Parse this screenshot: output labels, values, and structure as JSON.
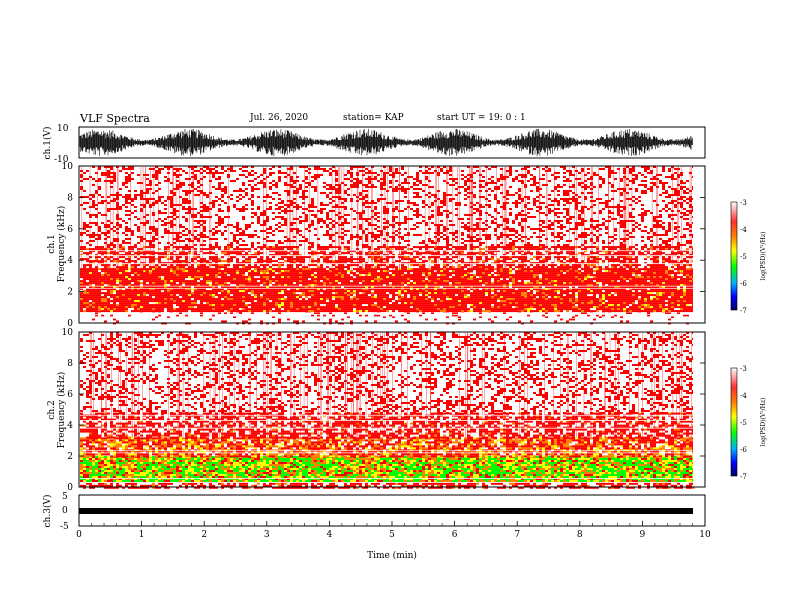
{
  "header": {
    "title": "VLF Spectra",
    "date": "Jul. 26, 2020",
    "station": "station= KAP",
    "start": "start UT =  19: 0 : 1"
  },
  "chart_data": [
    {
      "type": "line",
      "ylabel": "ch.1(V)",
      "ylim": [
        -10,
        10
      ],
      "yticks": [
        "10",
        "-10"
      ],
      "xlim": [
        0,
        10
      ],
      "description_values": {
        "waveform": "dense oscillating signal"
      },
      "series": [
        {
          "values": [
            -5.2,
            4.1,
            6.8,
            1.5,
            -3.2,
            7.5,
            -6.1,
            2.2,
            -8.5,
            5.4,
            -2.1,
            8.1,
            -7.2,
            3.9,
            -4.4,
            6.2,
            -1.1,
            7.8,
            -5.9,
            4.7
          ]
        }
      ]
    },
    {
      "type": "heatmap",
      "ylabel": "ch.1\nFrequency (kHz)",
      "ylim": [
        0,
        10
      ],
      "yticks": [
        "0",
        "2",
        "4",
        "6",
        "8",
        "10"
      ],
      "xlim": [
        0,
        10
      ],
      "colorbar": {
        "label": "log(PSD)(V²/Hz)",
        "ticks": [
          "-3",
          "-4",
          "-5",
          "-6",
          "-7"
        ],
        "range": [
          -7,
          -3
        ]
      },
      "bands": [
        {
          "from": 0.0,
          "to": 0.8,
          "level": "white"
        },
        {
          "from": 0.8,
          "to": 3.5,
          "level": "red-dense"
        },
        {
          "from": 3.5,
          "to": 4.9,
          "level": "red"
        },
        {
          "from": 4.9,
          "to": 10.0,
          "level": "red-sparse"
        }
      ]
    },
    {
      "type": "heatmap",
      "ylabel": "ch.2\nFrequency (kHz)",
      "ylim": [
        0,
        10
      ],
      "yticks": [
        "0",
        "2",
        "4",
        "6",
        "8",
        "10"
      ],
      "xlim": [
        0,
        10
      ],
      "colorbar": {
        "label": "log(PSD)(V²/Hz)",
        "ticks": [
          "-3",
          "-4",
          "-5",
          "-6",
          "-7"
        ],
        "range": [
          -7,
          -3
        ]
      },
      "bands": [
        {
          "from": 0.0,
          "to": 0.4,
          "level": "red"
        },
        {
          "from": 0.4,
          "to": 2.0,
          "level": "green-yellow"
        },
        {
          "from": 2.0,
          "to": 3.2,
          "level": "orange-red"
        },
        {
          "from": 3.2,
          "to": 4.8,
          "level": "red"
        },
        {
          "from": 4.8,
          "to": 10.0,
          "level": "red-sparse"
        }
      ]
    },
    {
      "type": "line",
      "ylabel": "ch.3(V)",
      "ylim": [
        -5,
        5
      ],
      "yticks": [
        "5",
        "0",
        "-5"
      ],
      "xlim": [
        0,
        10
      ],
      "xlabel": "Time (min)",
      "xticks": [
        "0",
        "1",
        "2",
        "3",
        "4",
        "5",
        "6",
        "7",
        "8",
        "9",
        "10"
      ],
      "series": [
        {
          "values": [
            0.2,
            -0.3,
            0.1,
            -0.2,
            0.3,
            -0.1,
            0.2,
            -0.3
          ]
        }
      ]
    }
  ],
  "colors": {
    "red": "#ff0000",
    "orange": "#ff8000",
    "yellow": "#ffff00",
    "green": "#00ff00",
    "blue": "#0000ff",
    "navy": "#000050"
  }
}
